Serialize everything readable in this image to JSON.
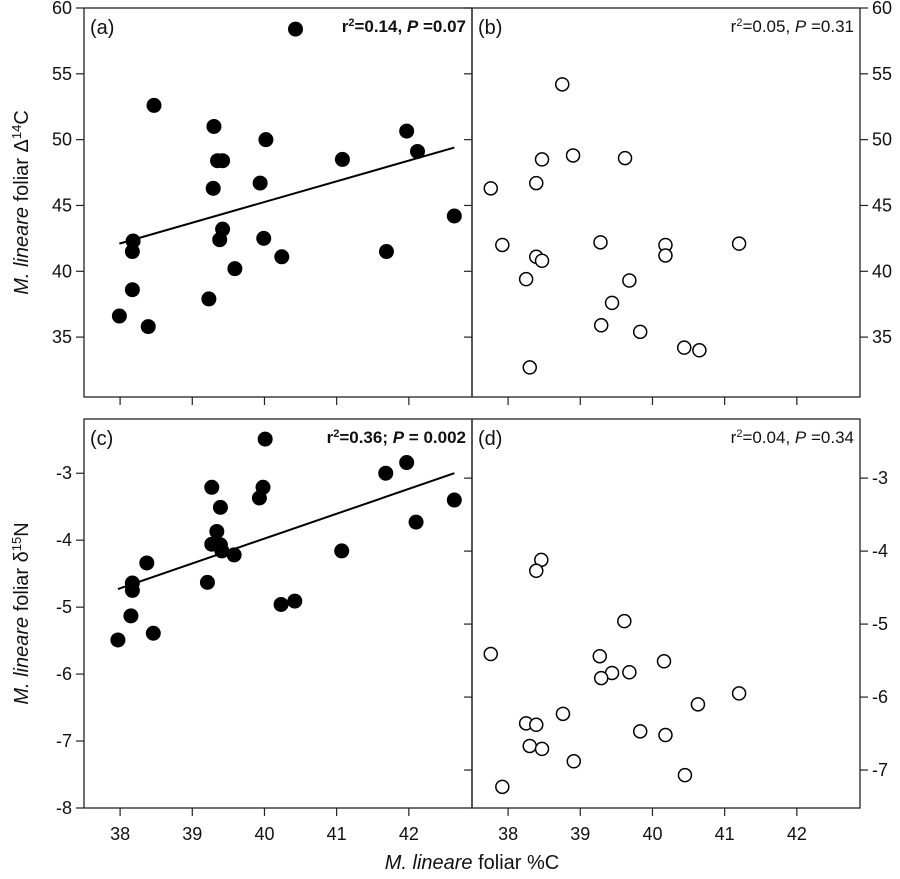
{
  "chart_data": [
    {
      "panel": "(a)",
      "type": "scatter",
      "marker": "filled-circle",
      "color": "#000000",
      "annotation": {
        "r": "r",
        "sup": "2",
        "mid": "=0.14, ",
        "p": "P",
        "tail": " =0.07",
        "bold": true
      },
      "xlim": [
        37.5,
        42.875
      ],
      "ylim": [
        30.45,
        60
      ],
      "yticks": [
        35,
        40,
        45,
        50,
        55,
        60
      ],
      "ytick_side": "left",
      "xticks": [
        38,
        39,
        40,
        41,
        42
      ],
      "xtick_labels": false,
      "ylabel": {
        "italic": "M. lineare",
        "rest": " foliar Δ",
        "sup": "14",
        "tail": "C"
      },
      "points": [
        [
          40.43,
          58.4
        ],
        [
          38.47,
          52.6
        ],
        [
          39.3,
          51.0
        ],
        [
          40.02,
          50.0
        ],
        [
          39.35,
          48.4
        ],
        [
          39.42,
          48.4
        ],
        [
          39.94,
          46.7
        ],
        [
          39.29,
          46.3
        ],
        [
          39.42,
          43.2
        ],
        [
          39.38,
          42.4
        ],
        [
          39.99,
          42.5
        ],
        [
          38.18,
          42.3
        ],
        [
          38.17,
          41.5
        ],
        [
          40.24,
          41.1
        ],
        [
          39.59,
          40.2
        ],
        [
          38.17,
          38.6
        ],
        [
          39.23,
          37.9
        ],
        [
          41.08,
          48.5
        ],
        [
          41.97,
          50.65
        ],
        [
          42.12,
          49.1
        ],
        [
          42.63,
          44.2
        ],
        [
          41.69,
          41.5
        ],
        [
          37.99,
          36.6
        ],
        [
          38.39,
          35.8
        ]
      ],
      "regression": [
        [
          37.99,
          42.1
        ],
        [
          42.63,
          49.4
        ]
      ]
    },
    {
      "panel": "(b)",
      "type": "scatter",
      "marker": "open-circle",
      "color": "#000000",
      "annotation": {
        "r": "r",
        "sup": "2",
        "mid": "=0.05, ",
        "p": "P",
        "tail": " =0.31",
        "bold": false
      },
      "xlim": [
        37.5,
        42.875
      ],
      "ylim": [
        30.45,
        60
      ],
      "yticks": [
        35,
        40,
        45,
        50,
        55,
        60
      ],
      "ytick_side": "right",
      "xticks": [
        38,
        39,
        40,
        41,
        42
      ],
      "xtick_labels": false,
      "points": [
        [
          38.75,
          54.2
        ],
        [
          38.47,
          48.5
        ],
        [
          38.9,
          48.8
        ],
        [
          38.39,
          46.7
        ],
        [
          37.76,
          46.3
        ],
        [
          37.92,
          42.0
        ],
        [
          38.39,
          41.1
        ],
        [
          38.47,
          40.8
        ],
        [
          38.25,
          39.4
        ],
        [
          39.62,
          48.6
        ],
        [
          39.28,
          42.2
        ],
        [
          40.18,
          42.0
        ],
        [
          40.18,
          41.2
        ],
        [
          41.2,
          42.1
        ],
        [
          39.68,
          39.3
        ],
        [
          39.44,
          37.6
        ],
        [
          39.29,
          35.9
        ],
        [
          39.83,
          35.4
        ],
        [
          40.44,
          34.2
        ],
        [
          40.65,
          34.0
        ],
        [
          38.3,
          32.7
        ]
      ]
    },
    {
      "panel": "(c)",
      "type": "scatter",
      "marker": "filled-circle",
      "color": "#000000",
      "annotation": {
        "r": "r",
        "sup": "2",
        "mid": "=0.36; ",
        "p": "P",
        "tail": " = 0.002",
        "bold": true
      },
      "xlim": [
        37.5,
        42.875
      ],
      "ylim": [
        -8,
        -2.19
      ],
      "yticks": [
        -8,
        -7,
        -6,
        -5,
        -4,
        -3
      ],
      "ytick_side": "left",
      "xticks": [
        38,
        39,
        40,
        41,
        42
      ],
      "xtick_labels": true,
      "ylabel": {
        "italic": "M. lineare",
        "rest": " foliar δ",
        "sup": "15",
        "tail": "N"
      },
      "points": [
        [
          40.01,
          -2.49
        ],
        [
          39.27,
          -3.21
        ],
        [
          39.98,
          -3.21
        ],
        [
          39.93,
          -3.37
        ],
        [
          39.39,
          -3.51
        ],
        [
          39.34,
          -3.87
        ],
        [
          39.27,
          -4.06
        ],
        [
          39.39,
          -4.07
        ],
        [
          39.41,
          -4.16
        ],
        [
          39.58,
          -4.22
        ],
        [
          38.37,
          -4.34
        ],
        [
          39.21,
          -4.63
        ],
        [
          38.17,
          -4.64
        ],
        [
          38.17,
          -4.75
        ],
        [
          38.15,
          -5.13
        ],
        [
          38.46,
          -5.39
        ],
        [
          37.97,
          -5.49
        ],
        [
          40.23,
          -4.96
        ],
        [
          40.42,
          -4.91
        ],
        [
          41.68,
          -3.0
        ],
        [
          41.97,
          -2.84
        ],
        [
          42.63,
          -3.4
        ],
        [
          42.1,
          -3.73
        ],
        [
          41.07,
          -4.16
        ]
      ],
      "regression": [
        [
          37.97,
          -4.73
        ],
        [
          42.63,
          -3.0
        ]
      ]
    },
    {
      "panel": "(d)",
      "type": "scatter",
      "marker": "open-circle",
      "color": "#000000",
      "annotation": {
        "r": "r",
        "sup": "2",
        "mid": "=0.04, ",
        "p": "P",
        "tail": " =0.34",
        "bold": false
      },
      "xlim": [
        37.5,
        42.875
      ],
      "ylim": [
        -7.52,
        -2.19
      ],
      "yticks": [
        -7,
        -6,
        -5,
        -4,
        -3
      ],
      "ytick_side": "right",
      "xticks": [
        38,
        39,
        40,
        41,
        42
      ],
      "xtick_labels": true,
      "points": [
        [
          38.46,
          -4.12
        ],
        [
          38.39,
          -4.27
        ],
        [
          39.61,
          -4.96
        ],
        [
          37.76,
          -5.41
        ],
        [
          39.27,
          -5.44
        ],
        [
          40.16,
          -5.51
        ],
        [
          39.44,
          -5.67
        ],
        [
          39.29,
          -5.74
        ],
        [
          39.68,
          -5.66
        ],
        [
          41.2,
          -5.95
        ],
        [
          40.63,
          -6.1
        ],
        [
          38.76,
          -6.23
        ],
        [
          38.25,
          -6.36
        ],
        [
          38.39,
          -6.38
        ],
        [
          39.83,
          -6.47
        ],
        [
          40.18,
          -6.52
        ],
        [
          38.3,
          -6.67
        ],
        [
          38.47,
          -6.71
        ],
        [
          38.91,
          -6.88
        ],
        [
          40.45,
          -7.07
        ],
        [
          37.92,
          -7.23
        ]
      ]
    }
  ],
  "xlabel": {
    "italic": "M. lineare",
    "rest": " foliar %C"
  }
}
